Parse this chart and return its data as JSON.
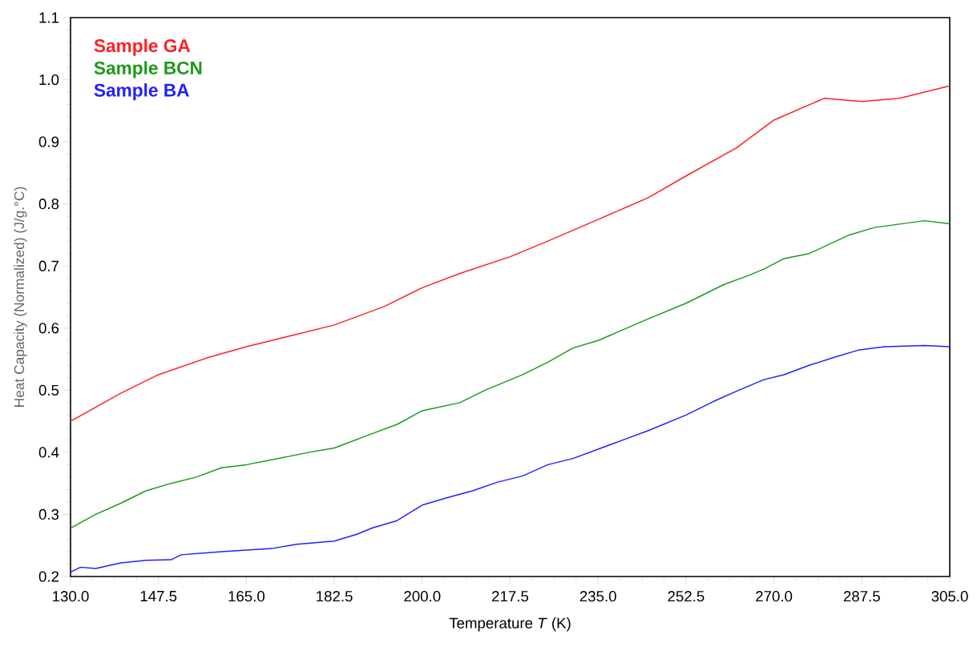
{
  "chart_data": {
    "type": "line",
    "xlabel": "Temperature *T* (K)",
    "ylabel": "Heat Capacity (Normalized)  (J/g.°C)",
    "xlim": [
      130,
      305
    ],
    "ylim": [
      0.2,
      1.1
    ],
    "xticks": [
      {
        "value": 130,
        "label": "130.0"
      },
      {
        "value": 147.5,
        "label": "147.5"
      },
      {
        "value": 165,
        "label": "165.0"
      },
      {
        "value": 182.5,
        "label": "182.5"
      },
      {
        "value": 200,
        "label": "200.0"
      },
      {
        "value": 217.5,
        "label": "217.5"
      },
      {
        "value": 235,
        "label": "235.0"
      },
      {
        "value": 252.5,
        "label": "252.5"
      },
      {
        "value": 270,
        "label": "270.0"
      },
      {
        "value": 287.5,
        "label": "287.5"
      },
      {
        "value": 305,
        "label": "305.0"
      }
    ],
    "yticks": [
      0.2,
      0.3,
      0.4,
      0.5,
      0.6,
      0.7,
      0.8,
      0.9,
      {
        "value": 1.0,
        "label": "1.0"
      },
      1.1
    ],
    "legend": "top left",
    "grid": false,
    "marker": "none",
    "line_style": "solid",
    "series": [
      {
        "name": "Sample GA",
        "color": "#ff2020",
        "x": [
          130,
          140,
          147.5,
          157.5,
          165,
          175,
          182.5,
          192.5,
          200,
          207.5,
          217.5,
          225,
          235,
          245,
          252.5,
          262.5,
          270,
          280,
          287.5,
          295,
          305
        ],
        "values": [
          0.45,
          0.495,
          0.525,
          0.553,
          0.57,
          0.59,
          0.605,
          0.635,
          0.665,
          0.688,
          0.715,
          0.74,
          0.775,
          0.81,
          0.845,
          0.89,
          0.935,
          0.97,
          0.965,
          0.97,
          0.99
        ]
      },
      {
        "name": "Sample BCN",
        "color": "#1a9a1a",
        "x": [
          130,
          135,
          140,
          145,
          150,
          155,
          160,
          165,
          170,
          177.5,
          182.5,
          190,
          195,
          200,
          207.5,
          212.5,
          220,
          225,
          230,
          235,
          245,
          252.5,
          260,
          265,
          268,
          272,
          277,
          285,
          290,
          300,
          305
        ],
        "values": [
          0.278,
          0.3,
          0.318,
          0.338,
          0.35,
          0.36,
          0.375,
          0.38,
          0.388,
          0.4,
          0.407,
          0.43,
          0.445,
          0.467,
          0.48,
          0.5,
          0.525,
          0.545,
          0.568,
          0.58,
          0.615,
          0.64,
          0.67,
          0.685,
          0.695,
          0.712,
          0.72,
          0.75,
          0.762,
          0.773,
          0.768
        ]
      },
      {
        "name": "Sample BA",
        "color": "#2020ff",
        "x": [
          130,
          132,
          135,
          140,
          145,
          150,
          152,
          160,
          170,
          175,
          182.5,
          187,
          190,
          195,
          200,
          205,
          210,
          215,
          220,
          225,
          230,
          235,
          240,
          245,
          252.5,
          258,
          263,
          268,
          272,
          277,
          282,
          287,
          292,
          300,
          305
        ],
        "values": [
          0.207,
          0.215,
          0.213,
          0.222,
          0.226,
          0.227,
          0.235,
          0.24,
          0.245,
          0.252,
          0.257,
          0.268,
          0.278,
          0.29,
          0.315,
          0.327,
          0.338,
          0.352,
          0.362,
          0.38,
          0.39,
          0.405,
          0.42,
          0.435,
          0.46,
          0.482,
          0.5,
          0.517,
          0.525,
          0.54,
          0.553,
          0.565,
          0.57,
          0.572,
          0.57
        ]
      }
    ]
  }
}
